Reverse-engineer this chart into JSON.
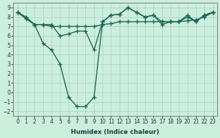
{
  "xlabel": "Humidex (Indice chaleur)",
  "ylabel": "",
  "bg_color": "#cceedd",
  "grid_color": "#aacccc",
  "line_color": "#1a6655",
  "xlim": [
    -0.5,
    23.5
  ],
  "ylim": [
    -2.5,
    9.5
  ],
  "xticks": [
    0,
    1,
    2,
    3,
    4,
    5,
    6,
    7,
    8,
    9,
    10,
    11,
    12,
    13,
    14,
    15,
    16,
    17,
    18,
    19,
    20,
    21,
    22,
    23
  ],
  "yticks": [
    -2,
    -1,
    0,
    1,
    2,
    3,
    4,
    5,
    6,
    7,
    8,
    9
  ],
  "line1_x": [
    0,
    1,
    2,
    3,
    4,
    5,
    6,
    7,
    8,
    9,
    10,
    11,
    12,
    13,
    14,
    15,
    16,
    17,
    18,
    19,
    20,
    21,
    22,
    23
  ],
  "line1_y": [
    8.5,
    8.0,
    7.2,
    7.2,
    7.0,
    7.0,
    7.0,
    7.0,
    7.0,
    7.0,
    7.2,
    7.3,
    7.5,
    7.5,
    7.5,
    7.5,
    7.5,
    7.5,
    7.5,
    7.5,
    7.6,
    7.7,
    8.0,
    8.5
  ],
  "line2_x": [
    0,
    1,
    2,
    3,
    4,
    5,
    6,
    7,
    8,
    9,
    10,
    11,
    12,
    13,
    14,
    15,
    16,
    17,
    18,
    19,
    20,
    21,
    22,
    23
  ],
  "line2_y": [
    8.5,
    7.8,
    7.2,
    7.2,
    7.2,
    6.0,
    6.2,
    6.5,
    6.5,
    4.5,
    7.5,
    8.2,
    8.3,
    9.0,
    8.5,
    8.0,
    8.2,
    7.2,
    7.5,
    7.5,
    8.0,
    7.5,
    8.2,
    8.5
  ],
  "line3_x": [
    0,
    2,
    3,
    4,
    5,
    6,
    7,
    8,
    9,
    10,
    11,
    12,
    13,
    14,
    15,
    16,
    17,
    18,
    19,
    20,
    21,
    22,
    23
  ],
  "line3_y": [
    8.5,
    7.2,
    5.2,
    4.5,
    3.0,
    -0.5,
    -1.5,
    -1.5,
    -0.5,
    7.5,
    8.2,
    8.3,
    9.0,
    8.5,
    8.0,
    8.2,
    7.5,
    7.5,
    7.5,
    8.2,
    7.5,
    8.2,
    8.5
  ],
  "marker": "+",
  "markersize": 4,
  "linewidth": 1.0,
  "tick_fontsize": 5.5,
  "xlabel_fontsize": 6.5
}
